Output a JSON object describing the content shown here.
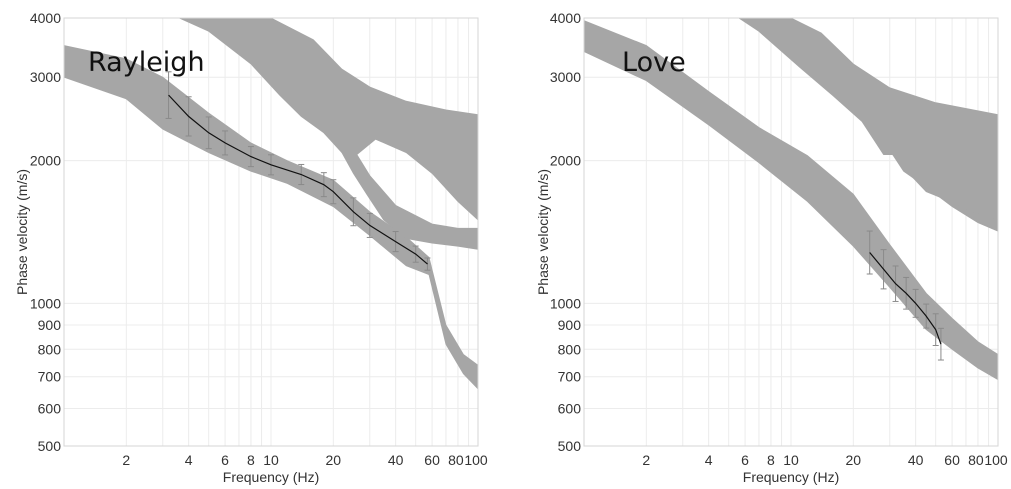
{
  "chart_data": [
    {
      "type": "line",
      "title": "Rayleigh",
      "xlabel": "Frequency (Hz)",
      "ylabel": "Phase velocity (m/s)",
      "xscale": "log",
      "yscale": "log",
      "xlim": [
        1,
        100
      ],
      "ylim": [
        500,
        4000
      ],
      "grid": true,
      "x_tick_labels": [
        "2",
        "4",
        "6",
        "8",
        "10",
        "20",
        "40",
        "60",
        "80",
        "100"
      ],
      "y_tick_labels": [
        "500",
        "600",
        "700",
        "800",
        "900",
        "1000",
        "2000",
        "3000",
        "4000"
      ],
      "colors": {
        "model_band": "#a6a6a6",
        "observed_curve": "#111111",
        "error_bar": "#8a8a8a"
      },
      "model_bands": [
        {
          "name": "",
          "upper": [
            [
              1,
              3500
            ],
            [
              2,
              3280
            ],
            [
              3,
              3000
            ],
            [
              5,
              2520
            ],
            [
              8,
              2180
            ],
            [
              12,
              2000
            ],
            [
              20,
              1820
            ],
            [
              30,
              1560
            ],
            [
              45,
              1380
            ],
            [
              58,
              1250
            ],
            [
              70,
              900
            ],
            [
              85,
              780
            ],
            [
              100,
              740
            ]
          ],
          "lower": [
            [
              100,
              660
            ],
            [
              85,
              710
            ],
            [
              70,
              820
            ],
            [
              58,
              1150
            ],
            [
              45,
              1200
            ],
            [
              30,
              1390
            ],
            [
              20,
              1600
            ],
            [
              12,
              1790
            ],
            [
              8,
              1900
            ],
            [
              5,
              2080
            ],
            [
              3,
              2330
            ],
            [
              2,
              2700
            ],
            [
              1,
              3000
            ]
          ]
        },
        {
          "name": "",
          "upper": [
            [
              3,
              4000
            ],
            [
              10,
              4000
            ],
            [
              16,
              3600
            ],
            [
              22,
              3120
            ],
            [
              30,
              2860
            ],
            [
              45,
              2670
            ],
            [
              70,
              2560
            ],
            [
              100,
              2500
            ]
          ],
          "lower": [
            [
              100,
              1500
            ],
            [
              80,
              1640
            ],
            [
              60,
              1880
            ],
            [
              45,
              2080
            ],
            [
              32,
              2220
            ],
            [
              26,
              2060
            ],
            [
              22,
              2080
            ],
            [
              18,
              2290
            ],
            [
              14,
              2480
            ],
            [
              11,
              2750
            ],
            [
              8,
              3200
            ],
            [
              5,
              3750
            ],
            [
              3.6,
              4000
            ]
          ]
        },
        {
          "name": "",
          "upper": [
            [
              22,
              2080
            ],
            [
              26,
              2060
            ],
            [
              30,
              1860
            ],
            [
              40,
              1610
            ],
            [
              60,
              1470
            ],
            [
              80,
              1440
            ],
            [
              100,
              1440
            ]
          ],
          "lower": [
            [
              100,
              1300
            ],
            [
              80,
              1320
            ],
            [
              60,
              1340
            ],
            [
              45,
              1370
            ],
            [
              35,
              1500
            ],
            [
              29,
              1700
            ],
            [
              25,
              1880
            ]
          ]
        }
      ],
      "series": [
        {
          "name": "",
          "x": [
            3.2,
            4,
            5,
            6,
            8,
            10,
            14,
            18,
            20,
            25,
            30,
            40,
            50,
            57
          ],
          "y": [
            2750,
            2480,
            2290,
            2180,
            2040,
            1960,
            1870,
            1780,
            1720,
            1560,
            1460,
            1350,
            1270,
            1210
          ],
          "error": [
            0.12,
            0.1,
            0.08,
            0.06,
            0.05,
            0.05,
            0.05,
            0.06,
            0.06,
            0.07,
            0.06,
            0.05,
            0.04,
            0.03
          ]
        }
      ]
    },
    {
      "type": "line",
      "title": "Love",
      "xlabel": "Frequency (Hz)",
      "ylabel": "Phase velocity (m/s)",
      "xscale": "log",
      "yscale": "log",
      "xlim": [
        1,
        100
      ],
      "ylim": [
        500,
        4000
      ],
      "grid": true,
      "x_tick_labels": [
        "2",
        "4",
        "6",
        "8",
        "10",
        "20",
        "40",
        "60",
        "80",
        "100"
      ],
      "y_tick_labels": [
        "500",
        "600",
        "700",
        "800",
        "900",
        "1000",
        "2000",
        "3000",
        "4000"
      ],
      "colors": {
        "model_band": "#a6a6a6",
        "observed_curve": "#111111",
        "error_bar": "#8a8a8a"
      },
      "model_bands": [
        {
          "name": "",
          "upper": [
            [
              1,
              3950
            ],
            [
              2,
              3500
            ],
            [
              4,
              2800
            ],
            [
              7,
              2350
            ],
            [
              12,
              2050
            ],
            [
              20,
              1700
            ],
            [
              30,
              1330
            ],
            [
              45,
              1050
            ],
            [
              60,
              930
            ],
            [
              80,
              830
            ],
            [
              100,
              780
            ]
          ],
          "lower": [
            [
              100,
              690
            ],
            [
              80,
              730
            ],
            [
              60,
              800
            ],
            [
              45,
              880
            ],
            [
              30,
              1080
            ],
            [
              20,
              1320
            ],
            [
              12,
              1640
            ],
            [
              7,
              1980
            ],
            [
              4,
              2380
            ],
            [
              2,
              2950
            ],
            [
              1,
              3400
            ]
          ]
        },
        {
          "name": "",
          "upper": [
            [
              3,
              4000
            ],
            [
              10,
              4000
            ],
            [
              14,
              3720
            ],
            [
              20,
              3200
            ],
            [
              30,
              2850
            ],
            [
              50,
              2650
            ],
            [
              100,
              2500
            ]
          ],
          "lower": [
            [
              100,
              1420
            ],
            [
              80,
              1480
            ],
            [
              60,
              1600
            ],
            [
              45,
              1760
            ],
            [
              35,
              1900
            ],
            [
              31,
              2060
            ],
            [
              28,
              2060
            ],
            [
              22,
              2420
            ],
            [
              16,
              2740
            ],
            [
              11,
              3150
            ],
            [
              7,
              3750
            ],
            [
              5.6,
              4000
            ]
          ]
        },
        {
          "name": "",
          "upper": [
            [
              31,
              2060
            ],
            [
              35,
              2040
            ],
            [
              45,
              1920
            ],
            [
              60,
              1760
            ],
            [
              80,
              1640
            ],
            [
              100,
              1600
            ]
          ],
          "lower": [
            [
              100,
              1500
            ],
            [
              90,
              1520
            ],
            [
              70,
              1580
            ],
            [
              55,
              1660
            ],
            [
              45,
              1720
            ],
            [
              38,
              1860
            ],
            [
              33,
              2000
            ]
          ]
        }
      ],
      "series": [
        {
          "name": "",
          "x": [
            24,
            28,
            32,
            36,
            40,
            45,
            50,
            53
          ],
          "y": [
            1280,
            1180,
            1100,
            1050,
            1000,
            940,
            880,
            820
          ],
          "error": [
            0.11,
            0.1,
            0.09,
            0.08,
            0.07,
            0.06,
            0.08,
            0.08
          ]
        }
      ]
    }
  ]
}
